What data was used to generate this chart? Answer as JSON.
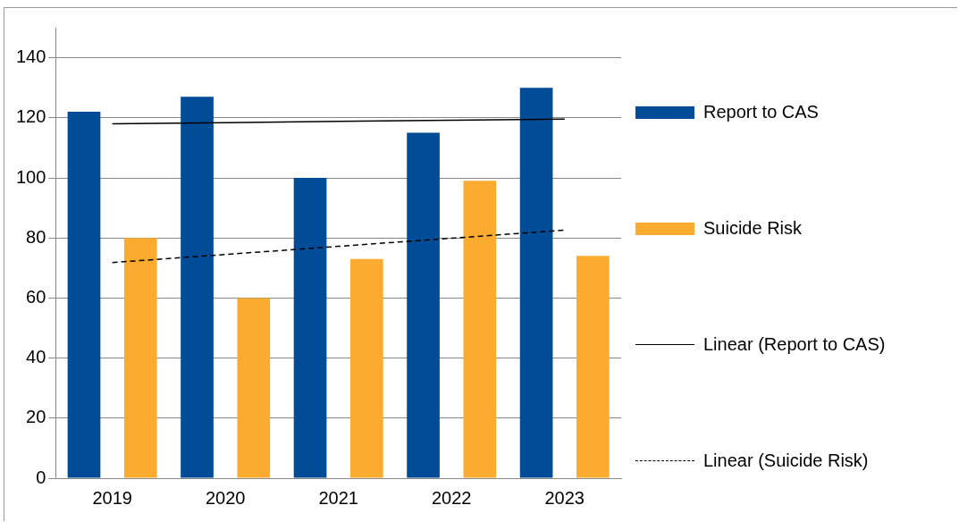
{
  "chart_data": {
    "type": "bar",
    "categories": [
      "2019",
      "2020",
      "2021",
      "2022",
      "2023"
    ],
    "series": [
      {
        "name": "Report to CAS",
        "color": "#004c97",
        "values": [
          122,
          127,
          100,
          115,
          130
        ]
      },
      {
        "name": "Suicide Risk",
        "color": "#fbab30",
        "values": [
          80,
          60,
          73,
          99,
          74
        ]
      },
      {
        "name": "Linear (Report to CAS)",
        "type": "line",
        "color": "#000000",
        "line_style": "solid",
        "marker": "none",
        "values": [
          118,
          118.4,
          118.8,
          119.2,
          119.6
        ]
      },
      {
        "name": "Linear (Suicide Risk)",
        "type": "line",
        "color": "#000000",
        "line_style": "dashed",
        "marker": "none",
        "values": [
          71.8,
          74.5,
          77.2,
          79.9,
          82.6
        ]
      }
    ],
    "ylim": [
      0,
      150
    ],
    "yticks": [
      0,
      20,
      40,
      60,
      80,
      100,
      120,
      140
    ],
    "grid": "y",
    "legend": "right"
  }
}
